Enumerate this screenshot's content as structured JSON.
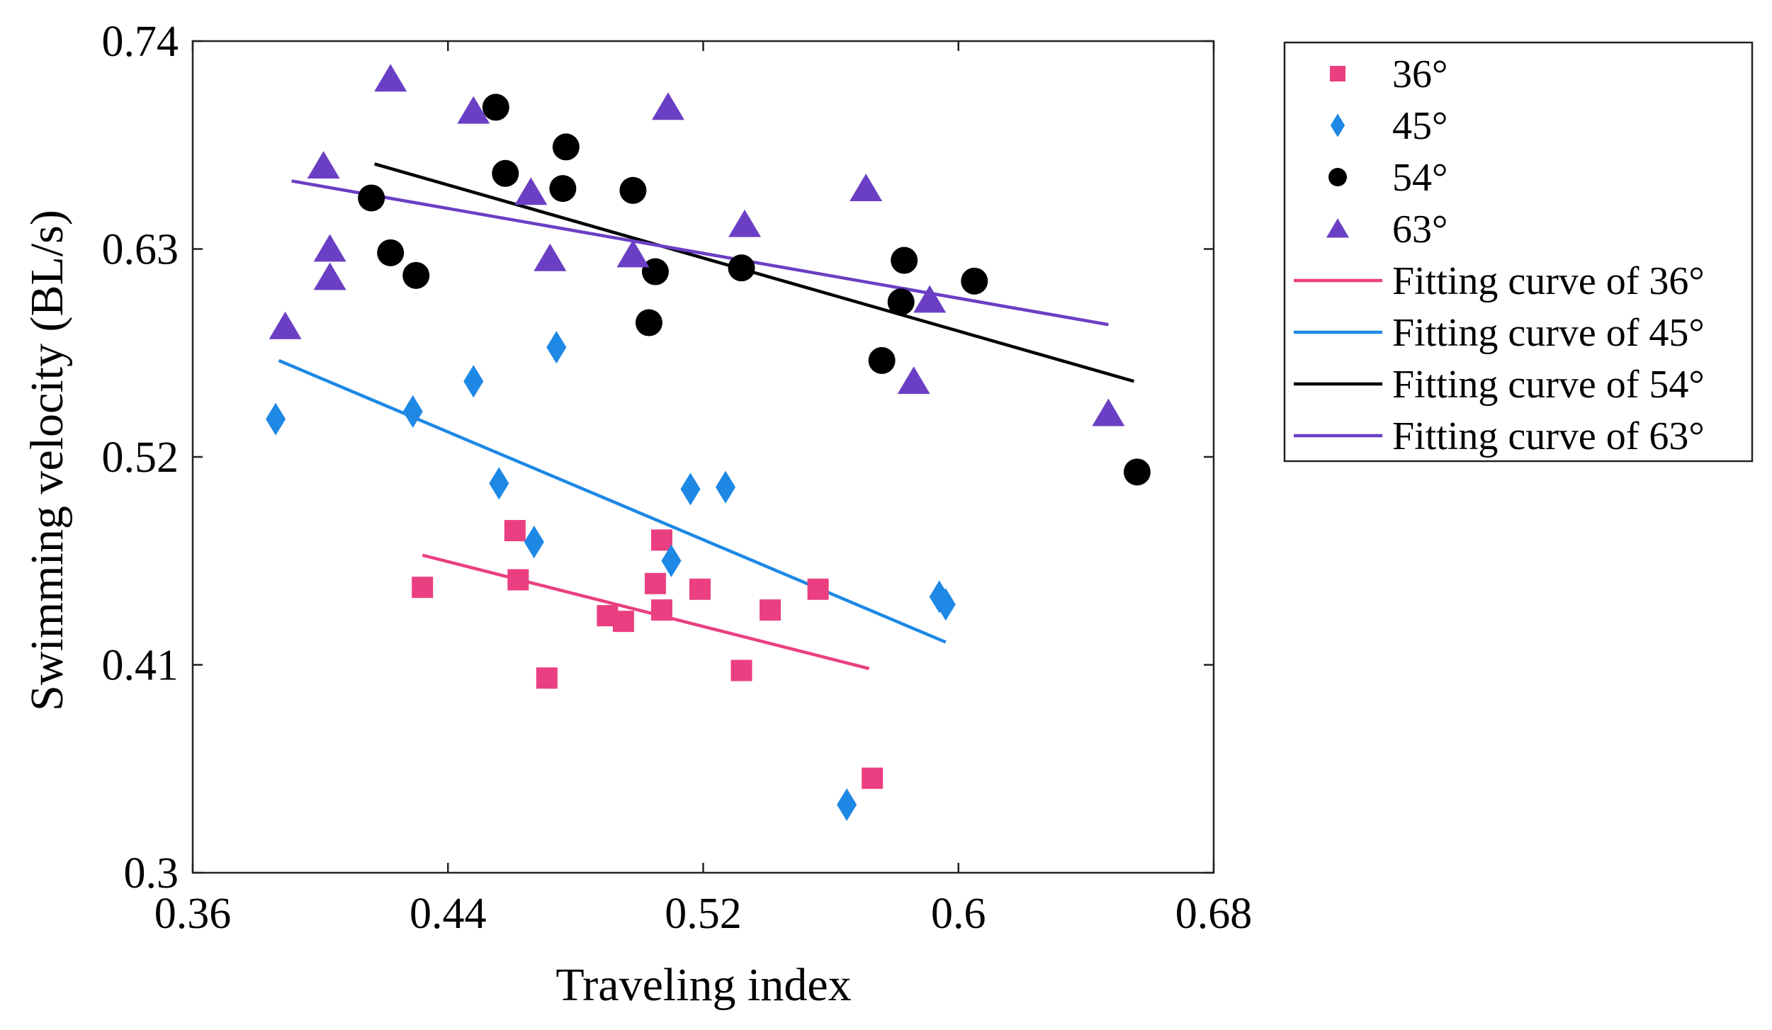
{
  "chart_data": {
    "type": "scatter",
    "xlabel": "Traveling index",
    "ylabel": "Swimming velocity (BL/s)",
    "xlim": [
      0.36,
      0.68
    ],
    "ylim": [
      0.3,
      0.74
    ],
    "xticks": [
      0.36,
      0.44,
      0.52,
      0.6,
      0.68
    ],
    "xtick_labels": [
      "0.36",
      "0.44",
      "0.52",
      "0.6",
      "0.68"
    ],
    "yticks": [
      0.3,
      0.41,
      0.52,
      0.63,
      0.74
    ],
    "ytick_labels": [
      "0.3",
      "0.41",
      "0.52",
      "0.63",
      "0.74"
    ],
    "grid": false,
    "legend_position": "outside-right-top",
    "series": [
      {
        "name": "36°",
        "marker": "square",
        "color": "#ea3f80",
        "points": [
          [
            0.432,
            0.451
          ],
          [
            0.461,
            0.481
          ],
          [
            0.462,
            0.455
          ],
          [
            0.471,
            0.403
          ],
          [
            0.49,
            0.436
          ],
          [
            0.495,
            0.433
          ],
          [
            0.505,
            0.453
          ],
          [
            0.507,
            0.476
          ],
          [
            0.507,
            0.439
          ],
          [
            0.519,
            0.45
          ],
          [
            0.532,
            0.407
          ],
          [
            0.541,
            0.439
          ],
          [
            0.556,
            0.45
          ],
          [
            0.573,
            0.35
          ]
        ]
      },
      {
        "name": "45°",
        "marker": "diamond",
        "color": "#1e88e5",
        "points": [
          [
            0.386,
            0.54
          ],
          [
            0.429,
            0.544
          ],
          [
            0.448,
            0.56
          ],
          [
            0.456,
            0.506
          ],
          [
            0.467,
            0.475
          ],
          [
            0.474,
            0.578
          ],
          [
            0.51,
            0.465
          ],
          [
            0.516,
            0.503
          ],
          [
            0.527,
            0.504
          ],
          [
            0.565,
            0.336
          ],
          [
            0.594,
            0.446
          ],
          [
            0.596,
            0.442
          ]
        ]
      },
      {
        "name": "54°",
        "marker": "circle",
        "color": "#000000",
        "points": [
          [
            0.416,
            0.657
          ],
          [
            0.422,
            0.628
          ],
          [
            0.43,
            0.616
          ],
          [
            0.455,
            0.705
          ],
          [
            0.458,
            0.67
          ],
          [
            0.476,
            0.662
          ],
          [
            0.477,
            0.684
          ],
          [
            0.498,
            0.661
          ],
          [
            0.503,
            0.591
          ],
          [
            0.505,
            0.618
          ],
          [
            0.532,
            0.62
          ],
          [
            0.576,
            0.571
          ],
          [
            0.582,
            0.602
          ],
          [
            0.583,
            0.624
          ],
          [
            0.605,
            0.613
          ],
          [
            0.656,
            0.512
          ]
        ]
      },
      {
        "name": "63°",
        "marker": "triangle",
        "color": "#6a3fc4",
        "points": [
          [
            0.389,
            0.589
          ],
          [
            0.401,
            0.674
          ],
          [
            0.403,
            0.63
          ],
          [
            0.403,
            0.615
          ],
          [
            0.422,
            0.72
          ],
          [
            0.448,
            0.703
          ],
          [
            0.466,
            0.66
          ],
          [
            0.472,
            0.625
          ],
          [
            0.498,
            0.627
          ],
          [
            0.509,
            0.705
          ],
          [
            0.533,
            0.643
          ],
          [
            0.571,
            0.662
          ],
          [
            0.586,
            0.56
          ],
          [
            0.591,
            0.603
          ],
          [
            0.647,
            0.543
          ]
        ]
      }
    ],
    "fits": [
      {
        "name": "Fitting curve of 36°",
        "color": "#ea3f80",
        "x": [
          0.432,
          0.572
        ],
        "y": [
          0.468,
          0.408
        ]
      },
      {
        "name": "Fitting curve of 45°",
        "color": "#1e88e5",
        "x": [
          0.387,
          0.596
        ],
        "y": [
          0.571,
          0.422
        ]
      },
      {
        "name": "Fitting curve of 54°",
        "color": "#000000",
        "x": [
          0.417,
          0.655
        ],
        "y": [
          0.675,
          0.56
        ]
      },
      {
        "name": "Fitting curve of 63°",
        "color": "#6a3fc4",
        "x": [
          0.391,
          0.647
        ],
        "y": [
          0.666,
          0.59
        ]
      }
    ]
  }
}
